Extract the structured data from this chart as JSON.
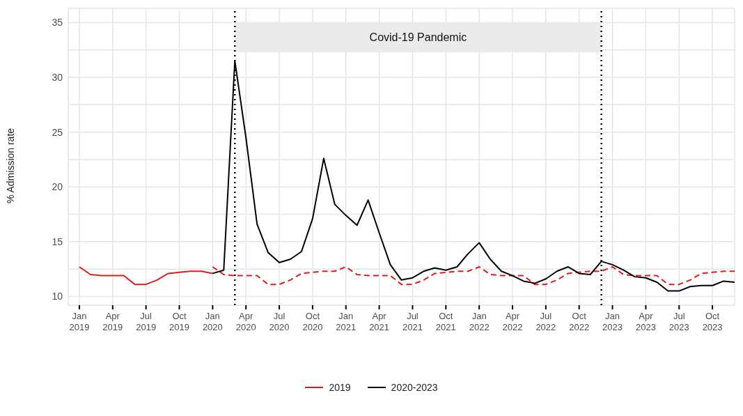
{
  "chart_data": {
    "type": "line",
    "ylabel": "% Admission rate",
    "xlim": [
      "2018-12",
      "2023-12"
    ],
    "ylim": [
      9.2,
      36.3
    ],
    "xticks": [
      {
        "value": "2019-01",
        "label": "Jan 2019"
      },
      {
        "value": "2019-04",
        "label": "Apr 2019"
      },
      {
        "value": "2019-07",
        "label": "Jul 2019"
      },
      {
        "value": "2019-10",
        "label": "Oct 2019"
      },
      {
        "value": "2020-01",
        "label": "Jan 2020"
      },
      {
        "value": "2020-04",
        "label": "Apr 2020"
      },
      {
        "value": "2020-07",
        "label": "Jul 2020"
      },
      {
        "value": "2020-10",
        "label": "Oct 2020"
      },
      {
        "value": "2021-01",
        "label": "Jan 2021"
      },
      {
        "value": "2021-04",
        "label": "Apr 2021"
      },
      {
        "value": "2021-07",
        "label": "Jul 2021"
      },
      {
        "value": "2021-10",
        "label": "Oct 2021"
      },
      {
        "value": "2022-01",
        "label": "Jan 2022"
      },
      {
        "value": "2022-04",
        "label": "Apr 2022"
      },
      {
        "value": "2022-07",
        "label": "Jul 2022"
      },
      {
        "value": "2022-10",
        "label": "Oct 2022"
      },
      {
        "value": "2023-01",
        "label": "Jan 2023"
      },
      {
        "value": "2023-04",
        "label": "Apr 2023"
      },
      {
        "value": "2023-07",
        "label": "Jul 2023"
      },
      {
        "value": "2023-10",
        "label": "Oct 2023"
      }
    ],
    "yticks": [
      10,
      {
        "value": 12.5,
        "label": null
      },
      15,
      {
        "value": 17.5,
        "label": null
      },
      20,
      {
        "value": 22.5,
        "label": null
      },
      25,
      {
        "value": 27.5,
        "label": null
      },
      30,
      {
        "value": 32.5,
        "label": null
      },
      35
    ],
    "grid": true,
    "legend": "bottom",
    "marker": "none",
    "series": [
      {
        "name": "2019",
        "color": "#e31a1c",
        "line_style": "solid",
        "x": [
          "2019-01",
          "2019-02",
          "2019-03",
          "2019-04",
          "2019-05",
          "2019-06",
          "2019-07",
          "2019-08",
          "2019-09",
          "2019-10",
          "2019-11",
          "2019-12",
          "2020-01"
        ],
        "values": [
          12.7,
          12.0,
          11.9,
          11.9,
          11.9,
          11.1,
          11.1,
          11.5,
          12.1,
          12.2,
          12.3,
          12.3,
          12.1
        ]
      },
      {
        "color": "#e31a1c",
        "line_style": "dashed",
        "x": [
          "2020-01",
          "2020-02",
          "2020-03",
          "2020-04",
          "2020-05",
          "2020-06",
          "2020-07",
          "2020-08",
          "2020-09",
          "2020-10",
          "2020-11",
          "2020-12",
          "2021-01",
          "2021-02",
          "2021-03",
          "2021-04",
          "2021-05",
          "2021-06",
          "2021-07",
          "2021-08",
          "2021-09",
          "2021-10",
          "2021-11",
          "2021-12",
          "2022-01",
          "2022-02",
          "2022-03",
          "2022-04",
          "2022-05",
          "2022-06",
          "2022-07",
          "2022-08",
          "2022-09",
          "2022-10",
          "2022-11",
          "2022-12",
          "2023-01",
          "2023-02",
          "2023-03",
          "2023-04",
          "2023-05",
          "2023-06",
          "2023-07",
          "2023-08",
          "2023-09",
          "2023-10",
          "2023-11",
          "2023-12"
        ],
        "values": [
          12.7,
          12.0,
          11.9,
          11.9,
          11.9,
          11.1,
          11.1,
          11.5,
          12.1,
          12.2,
          12.3,
          12.3,
          12.7,
          12.0,
          11.9,
          11.9,
          11.9,
          11.1,
          11.1,
          11.5,
          12.1,
          12.2,
          12.3,
          12.3,
          12.7,
          12.0,
          11.9,
          11.9,
          11.9,
          11.1,
          11.1,
          11.5,
          12.1,
          12.2,
          12.3,
          12.3,
          12.7,
          12.0,
          11.9,
          11.9,
          11.9,
          11.1,
          11.1,
          11.5,
          12.1,
          12.2,
          12.3,
          12.3
        ]
      },
      {
        "name": "2020-2023",
        "color": "#000000",
        "line_style": "solid",
        "x": [
          "2020-01",
          "2020-02",
          "2020-03",
          "2020-04",
          "2020-05",
          "2020-06",
          "2020-07",
          "2020-08",
          "2020-09",
          "2020-10",
          "2020-11",
          "2020-12",
          "2021-01",
          "2021-02",
          "2021-03",
          "2021-04",
          "2021-05",
          "2021-06",
          "2021-07",
          "2021-08",
          "2021-09",
          "2021-10",
          "2021-11",
          "2021-12",
          "2022-01",
          "2022-02",
          "2022-03",
          "2022-04",
          "2022-05",
          "2022-06",
          "2022-07",
          "2022-08",
          "2022-09",
          "2022-10",
          "2022-11",
          "2022-12",
          "2023-01",
          "2023-02",
          "2023-03",
          "2023-04",
          "2023-05",
          "2023-06",
          "2023-07",
          "2023-08",
          "2023-09",
          "2023-10",
          "2023-11",
          "2023-12"
        ],
        "values": [
          12.1,
          12.4,
          31.5,
          24.5,
          16.6,
          14.0,
          13.1,
          13.4,
          14.1,
          17.1,
          22.6,
          18.4,
          17.4,
          16.5,
          18.8,
          15.8,
          12.9,
          11.5,
          11.7,
          12.3,
          12.6,
          12.4,
          12.7,
          13.9,
          14.9,
          13.4,
          12.3,
          11.9,
          11.4,
          11.2,
          11.6,
          12.3,
          12.7,
          12.1,
          12.0,
          13.2,
          12.9,
          12.4,
          11.8,
          11.7,
          11.3,
          10.5,
          10.5,
          10.9,
          11.0,
          11.0,
          11.4,
          11.3
        ]
      }
    ],
    "ref_lines": [
      {
        "axis": "x",
        "value": "2020-03",
        "color": "#000000",
        "line_style": "dotted"
      },
      {
        "axis": "x",
        "value": "2022-12",
        "color": "#000000",
        "line_style": "dotted"
      }
    ],
    "bands": [
      {
        "axis": "x",
        "from": "2020-03",
        "to": "2022-12",
        "label": "Covid-19 Pandemic",
        "color": "#ebebeb"
      }
    ]
  }
}
